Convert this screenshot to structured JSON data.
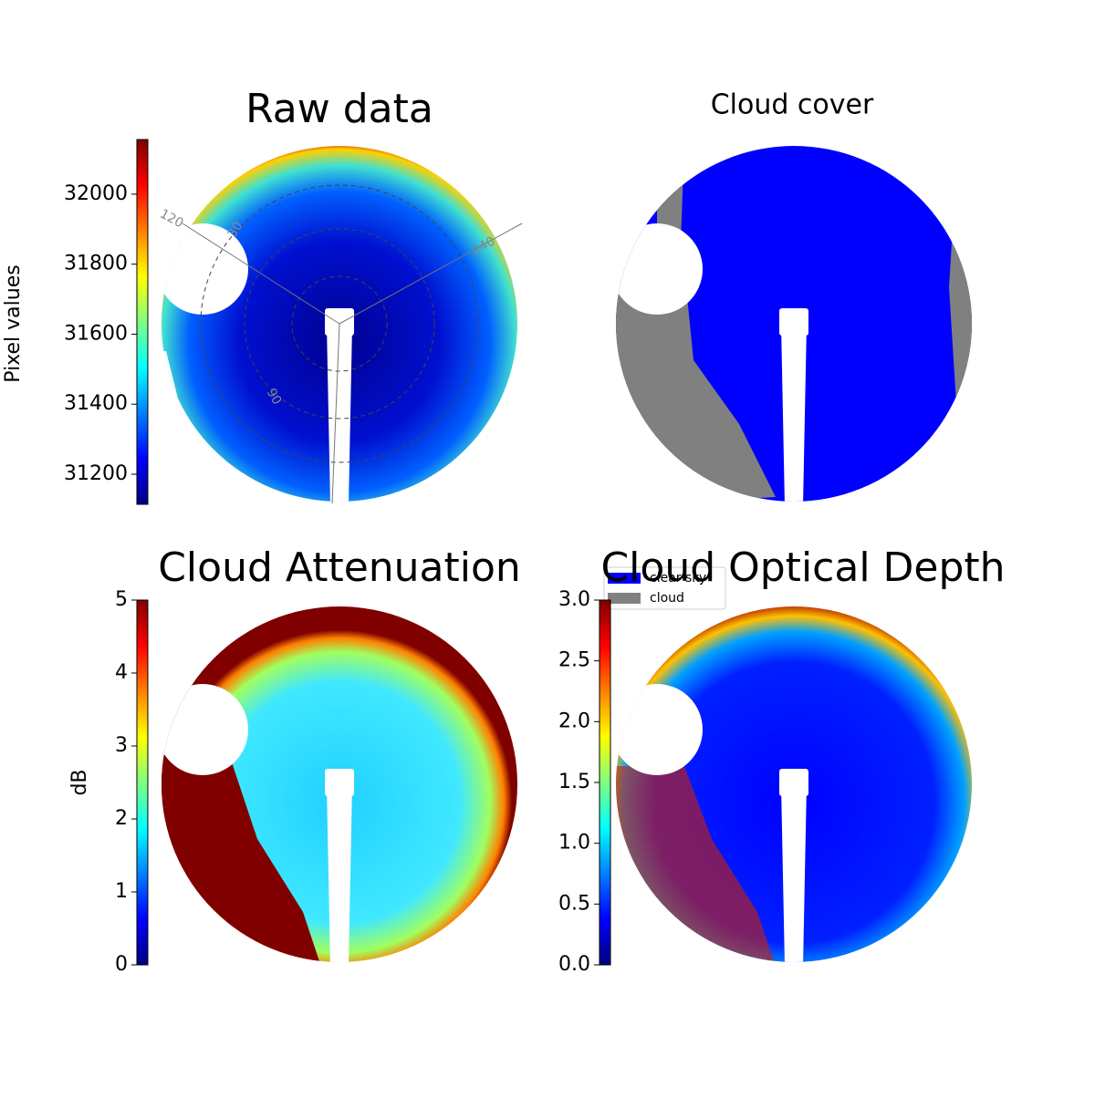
{
  "chart_data": [
    {
      "type": "image",
      "title": "Raw data",
      "colorbar_label": "Pixel values",
      "colormap": "jet",
      "clim": [
        31114,
        32156
      ],
      "cticks": [
        31200,
        31400,
        31600,
        31800,
        32000
      ],
      "annotations": [
        "120",
        "30",
        "240",
        "90"
      ]
    },
    {
      "type": "image",
      "title": "Cloud cover",
      "legend": [
        {
          "name": "clear sky",
          "color": "#0000ff"
        },
        {
          "name": "cloud",
          "color": "#808080"
        }
      ]
    },
    {
      "type": "image",
      "title": "Cloud Attenuation",
      "colorbar_label": "dB",
      "colormap": "jet",
      "clim": [
        0,
        5
      ],
      "cticks": [
        0,
        1,
        2,
        3,
        4,
        5
      ]
    },
    {
      "type": "image",
      "title": "Cloud Optical Depth",
      "colormap": "jet",
      "clim": [
        0,
        3
      ],
      "cticks": [
        {
          "value": 0,
          "label": "0.0"
        },
        {
          "value": 0.5,
          "label": "0.5"
        },
        {
          "value": 1,
          "label": "1.0"
        },
        {
          "value": 1.5,
          "label": "1.5"
        },
        {
          "value": 2,
          "label": "2.0"
        },
        {
          "value": 2.5,
          "label": "2.5"
        },
        {
          "value": 3,
          "label": "3.0"
        }
      ]
    }
  ]
}
